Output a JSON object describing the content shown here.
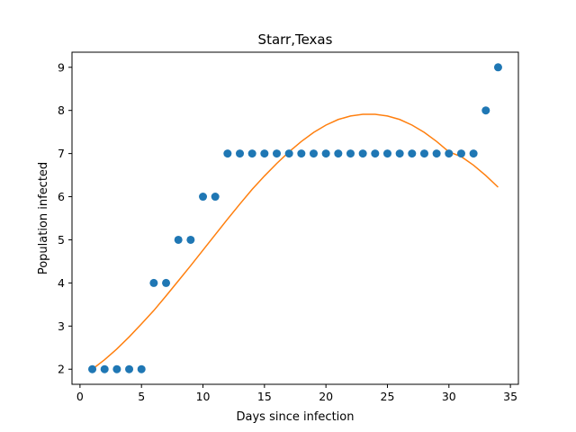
{
  "chart_data": {
    "type": "scatter",
    "title": "Starr,Texas",
    "xlabel": "Days since infection",
    "ylabel": "Population infected",
    "xlim": [
      -0.65,
      35.65
    ],
    "ylim": [
      1.65,
      9.35
    ],
    "xticks": [
      0,
      5,
      10,
      15,
      20,
      25,
      30,
      35
    ],
    "yticks": [
      2,
      3,
      4,
      5,
      6,
      7,
      8,
      9
    ],
    "grid": false,
    "series": [
      {
        "kind": "scatter",
        "color": "#1f77b4",
        "x": [
          1,
          2,
          3,
          4,
          5,
          6,
          7,
          8,
          9,
          10,
          11,
          12,
          13,
          14,
          15,
          16,
          17,
          18,
          19,
          20,
          21,
          22,
          23,
          24,
          25,
          26,
          27,
          28,
          29,
          30,
          31,
          32,
          33,
          34
        ],
        "y": [
          2,
          2,
          2,
          2,
          2,
          4,
          4,
          5,
          5,
          6,
          6,
          7,
          7,
          7,
          7,
          7,
          7,
          7,
          7,
          7,
          7,
          7,
          7,
          7,
          7,
          7,
          7,
          7,
          7,
          7,
          7,
          7,
          8,
          9
        ]
      },
      {
        "kind": "line",
        "color": "#ff7f0e",
        "x": [
          1,
          2,
          3,
          4,
          5,
          6,
          7,
          8,
          9,
          10,
          11,
          12,
          13,
          14,
          15,
          16,
          17,
          18,
          19,
          20,
          21,
          22,
          23,
          24,
          25,
          26,
          27,
          28,
          29,
          30,
          31,
          32,
          33,
          34
        ],
        "y": [
          2.0,
          2.22,
          2.47,
          2.75,
          3.05,
          3.36,
          3.7,
          4.05,
          4.4,
          4.76,
          5.12,
          5.48,
          5.83,
          6.17,
          6.48,
          6.77,
          7.04,
          7.28,
          7.49,
          7.66,
          7.79,
          7.87,
          7.91,
          7.91,
          7.87,
          7.79,
          7.66,
          7.49,
          7.28,
          7.04,
          6.93,
          6.73,
          6.49,
          6.22
        ]
      }
    ]
  }
}
